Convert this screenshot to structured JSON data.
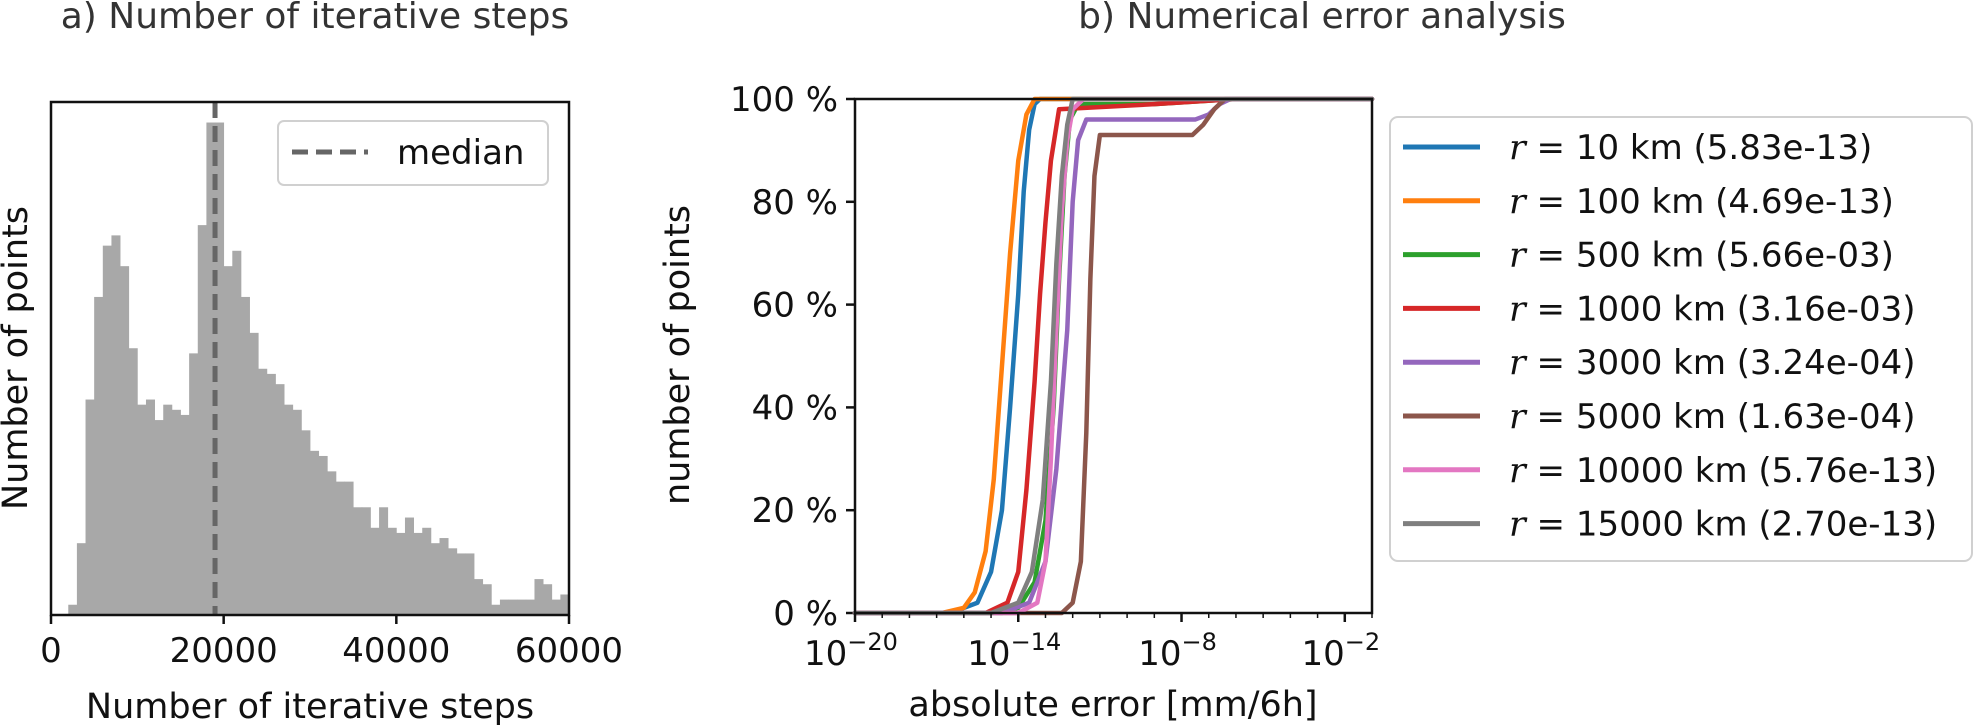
{
  "chart_data": [
    {
      "panel": "a",
      "type": "bar",
      "title": "a) Number of iterative steps",
      "xlabel": "Number of iterative steps",
      "ylabel": "Number of points",
      "xlim": [
        0,
        60000
      ],
      "x_ticks": [
        0,
        20000,
        40000,
        60000
      ],
      "x_tick_labels": [
        "0",
        "20000",
        "40000",
        "60000"
      ],
      "ylim": [
        0,
        100
      ],
      "y_tick_labels_shown": false,
      "bin_width": 1000,
      "bin_start": 2000,
      "values": [
        2,
        14,
        42,
        62,
        72,
        74,
        68,
        52,
        41,
        42,
        38,
        41,
        40,
        39,
        51,
        76,
        96,
        96,
        68,
        71,
        62,
        55,
        48,
        47,
        45,
        41,
        40,
        36,
        32,
        31,
        28,
        26,
        26,
        21,
        21,
        17,
        21,
        17,
        16,
        19,
        16,
        17,
        14,
        15,
        13,
        12,
        12,
        7,
        6,
        2,
        3,
        3,
        3,
        3,
        7,
        6,
        3,
        4
      ],
      "median": 19000,
      "legend": [
        "median"
      ],
      "legend_position": "top-right",
      "bar_color": "#a8a8a8",
      "median_color": "#666666"
    },
    {
      "panel": "b",
      "type": "line",
      "title": "b) Numerical error analysis",
      "xlabel": "absolute error [mm/6h]",
      "ylabel": "number of points",
      "x_scale": "log",
      "xlim_log10": [
        -20,
        -1
      ],
      "x_tick_exponents": [
        -20,
        -14,
        -8,
        -2
      ],
      "x_tick_base": "10",
      "ylim": [
        0,
        100
      ],
      "y_ticks": [
        0,
        20,
        40,
        60,
        80,
        100
      ],
      "y_tick_labels": [
        "0 %",
        "20 %",
        "40 %",
        "60 %",
        "80 %",
        "100 %"
      ],
      "legend_position": "outside-right",
      "series": [
        {
          "name": "r = 10 km (5.83e-13)",
          "label_var": "r",
          "label_eq": " = 10 km (5.83e-13)",
          "color": "#1f77b4",
          "x_log10": [
            -20,
            -16.5,
            -15.5,
            -15.0,
            -14.6,
            -14.3,
            -14.0,
            -13.8,
            -13.6,
            -13.4,
            -13.2,
            -1
          ],
          "y": [
            0,
            0,
            2,
            8,
            20,
            40,
            62,
            82,
            94,
            99,
            100,
            100
          ]
        },
        {
          "name": "r = 100 km (4.69e-13)",
          "label_var": "r",
          "label_eq": " = 100 km (4.69e-13)",
          "color": "#ff7f0e",
          "x_log10": [
            -20,
            -16.8,
            -16.0,
            -15.6,
            -15.2,
            -14.9,
            -14.6,
            -14.3,
            -14.0,
            -13.7,
            -13.4,
            -1
          ],
          "y": [
            0,
            0,
            1,
            4,
            12,
            26,
            48,
            70,
            88,
            97,
            100,
            100
          ]
        },
        {
          "name": "r = 500 km (5.66e-03)",
          "label_var": "r",
          "label_eq": " = 500 km (5.66e-03)",
          "color": "#2ca02c",
          "x_log10": [
            -20,
            -15.0,
            -14.0,
            -13.4,
            -13.0,
            -12.7,
            -12.5,
            -12.3,
            -12.1,
            -11.8,
            -9.0,
            -6.0,
            -1
          ],
          "y": [
            0,
            0,
            1,
            6,
            18,
            40,
            65,
            85,
            96,
            99,
            99,
            100,
            100
          ]
        },
        {
          "name": "r = 1000 km (3.16e-03)",
          "label_var": "r",
          "label_eq": " = 1000 km (3.16e-03)",
          "color": "#d62728",
          "x_log10": [
            -20,
            -15.2,
            -14.4,
            -14.0,
            -13.7,
            -13.4,
            -13.2,
            -13.0,
            -12.8,
            -12.5,
            -9.0,
            -6.0,
            -1
          ],
          "y": [
            0,
            0,
            2,
            8,
            24,
            45,
            62,
            76,
            88,
            98,
            99,
            100,
            100
          ]
        },
        {
          "name": "r = 3000 km (3.24e-04)",
          "label_var": "r",
          "label_eq": " = 3000 km (3.24e-04)",
          "color": "#9467bd",
          "x_log10": [
            -20,
            -14.6,
            -13.6,
            -13.0,
            -12.6,
            -12.2,
            -12.0,
            -11.8,
            -11.5,
            -10.0,
            -7.5,
            -7.0,
            -6.6,
            -6.2,
            -5.0,
            -1
          ],
          "y": [
            0,
            0,
            2,
            10,
            28,
            55,
            80,
            92,
            96,
            96,
            96,
            97,
            99,
            100,
            100,
            100
          ]
        },
        {
          "name": "r = 5000 km (1.63e-04)",
          "label_var": "r",
          "label_eq": " = 5000 km (1.63e-04)",
          "color": "#8c564b",
          "x_log10": [
            -20,
            -12.4,
            -12.0,
            -11.7,
            -11.5,
            -11.35,
            -11.2,
            -11.0,
            -10.6,
            -9.0,
            -7.6,
            -7.2,
            -6.8,
            -6.4,
            -5.5,
            -1
          ],
          "y": [
            0,
            0,
            2,
            10,
            35,
            65,
            85,
            93,
            93,
            93,
            93,
            95,
            98,
            100,
            100,
            100
          ]
        },
        {
          "name": "r = 10000 km (5.76e-13)",
          "label_var": "r",
          "label_eq": " = 10000 km (5.76e-13)",
          "color": "#e377c2",
          "x_log10": [
            -20,
            -14.0,
            -13.3,
            -13.0,
            -12.8,
            -12.6,
            -12.4,
            -12.2,
            -12.0,
            -11.6,
            -1
          ],
          "y": [
            0,
            0,
            2,
            10,
            30,
            55,
            78,
            92,
            98,
            100,
            100
          ]
        },
        {
          "name": "r = 15000 km (2.70e-13)",
          "label_var": "r",
          "label_eq": " = 15000 km (2.70e-13)",
          "color": "#7f7f7f",
          "x_log10": [
            -20,
            -15.0,
            -14.0,
            -13.5,
            -13.1,
            -12.8,
            -12.6,
            -12.4,
            -12.2,
            -12.0,
            -1
          ],
          "y": [
            0,
            0,
            2,
            8,
            22,
            45,
            68,
            85,
            95,
            100,
            100
          ]
        }
      ]
    }
  ]
}
